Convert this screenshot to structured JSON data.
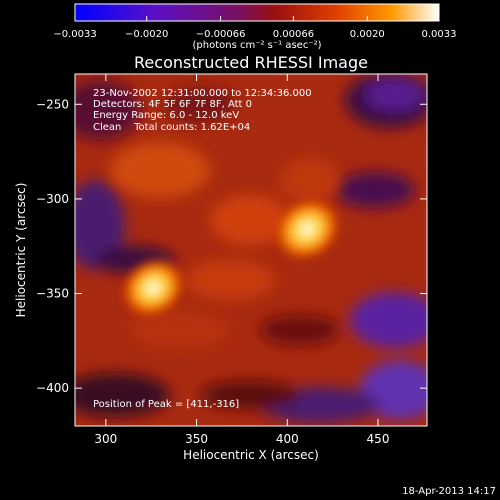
{
  "chart_data": {
    "type": "heatmap",
    "title": "Reconstructed RHESSI Image",
    "xlabel": "Heliocentric X (arcsec)",
    "ylabel": "Heliocentric Y (arcsec)",
    "xlim": [
      283,
      477
    ],
    "ylim": [
      -420,
      -234
    ],
    "x_ticks": [
      300,
      350,
      400,
      450
    ],
    "y_ticks": [
      -250,
      -300,
      -350,
      -400
    ],
    "x_tick_labels": [
      "300",
      "350",
      "400",
      "450"
    ],
    "y_tick_labels": [
      "−250",
      "−300",
      "−350",
      "−400"
    ],
    "colorbar": {
      "min": -0.0033,
      "max": 0.0033,
      "ticks": [
        -0.0033,
        -0.002,
        -0.00066,
        0.00066,
        0.002,
        0.0033
      ],
      "tick_labels": [
        "−0.0033",
        "−0.0020",
        "−0.00066",
        "0.00066",
        "0.0020",
        "0.0033"
      ],
      "unit_label": "(photons cm⁻² s⁻¹ asec⁻²)"
    },
    "sources": [
      {
        "x": 411,
        "y": -316,
        "peak": 1.0
      },
      {
        "x": 326,
        "y": -347,
        "peak": 0.95
      }
    ],
    "annotations": {
      "time_range": "23-Nov-2002 12:31:00.000 to 12:34:36.000",
      "detectors": "Detectors: 4F 5F 6F 7F 8F, Att 0",
      "energy_range": "Energy Range: 6.0 - 12.0 keV",
      "method_counts": "Clean    Total counts: 1.62E+04",
      "peak_position": "Position of Peak = [411,-316]"
    },
    "footer_date": "18-Apr-2013 14:17"
  }
}
